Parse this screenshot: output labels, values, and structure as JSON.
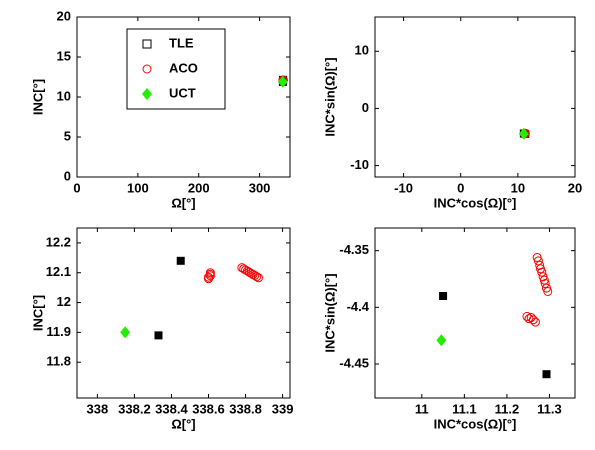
{
  "chart_data": [
    {
      "type": "scatter",
      "x_label": "Ω[°]",
      "y_label": "INC[°]",
      "xlim": [
        0,
        350
      ],
      "ylim": [
        0,
        20
      ],
      "xticks": [
        0,
        100,
        200,
        300
      ],
      "yticks": [
        0,
        5,
        10,
        15,
        20
      ],
      "legend": "upper left",
      "series": [
        {
          "name": "TLE",
          "color": "#000000",
          "marker": "square",
          "x": [
            338.45,
            338.33
          ],
          "values": [
            12.14,
            11.89
          ]
        },
        {
          "name": "ACO",
          "color": "#ff0000",
          "marker": "circle",
          "x": [
            338.61,
            338.61,
            338.61,
            338.6,
            338.6,
            338.78,
            338.79,
            338.8,
            338.81,
            338.82,
            338.83,
            338.84,
            338.85,
            338.86,
            338.87
          ],
          "values": [
            12.1,
            12.095,
            12.09,
            12.085,
            12.08,
            12.117,
            12.113,
            12.109,
            12.106,
            12.102,
            12.098,
            12.094,
            12.091,
            12.087,
            12.083
          ]
        },
        {
          "name": "UCT",
          "color": "#22ee00",
          "marker": "diamond",
          "x": [
            338.15
          ],
          "values": [
            11.9
          ]
        }
      ]
    },
    {
      "type": "scatter",
      "x_label": "INC*cos(Ω)[°]",
      "y_label": "INC*sin(Ω)[°]",
      "xlim": [
        -15,
        20
      ],
      "ylim": [
        -12,
        16
      ],
      "xticks": [
        -10,
        0,
        10,
        20
      ],
      "yticks": [
        -10,
        0,
        10
      ],
      "series": [
        {
          "name": "TLE",
          "color": "#000000",
          "marker": "square",
          "x": [
            11.293,
            11.05
          ],
          "values": [
            -4.459,
            -4.39
          ]
        },
        {
          "name": "ACO",
          "color": "#ff0000",
          "marker": "circle",
          "x": [
            11.267,
            11.262,
            11.257,
            11.252,
            11.247,
            11.296,
            11.293,
            11.29,
            11.288,
            11.285,
            11.282,
            11.279,
            11.277,
            11.274,
            11.271
          ],
          "values": [
            -4.413,
            -4.411,
            -4.409,
            -4.41,
            -4.408,
            -4.386,
            -4.383,
            -4.379,
            -4.376,
            -4.373,
            -4.369,
            -4.366,
            -4.363,
            -4.359,
            -4.356
          ]
        },
        {
          "name": "UCT",
          "color": "#22ee00",
          "marker": "diamond",
          "x": [
            11.046
          ],
          "values": [
            -4.429
          ]
        }
      ]
    },
    {
      "type": "scatter",
      "x_label": "Ω[°]",
      "y_label": "INC[°]",
      "xlim": [
        337.89,
        339.04
      ],
      "ylim": [
        11.68,
        12.25
      ],
      "xticks": [
        338,
        338.2,
        338.4,
        338.6,
        338.8,
        339
      ],
      "yticks": [
        11.8,
        11.9,
        12,
        12.1,
        12.2
      ],
      "series": [
        {
          "name": "TLE",
          "color": "#000000",
          "marker": "square",
          "x": [
            338.45,
            338.33
          ],
          "values": [
            12.14,
            11.89
          ]
        },
        {
          "name": "ACO",
          "color": "#ff0000",
          "marker": "circle",
          "x": [
            338.61,
            338.61,
            338.61,
            338.6,
            338.6,
            338.78,
            338.79,
            338.8,
            338.81,
            338.82,
            338.83,
            338.84,
            338.85,
            338.86,
            338.87
          ],
          "values": [
            12.1,
            12.095,
            12.09,
            12.085,
            12.08,
            12.117,
            12.113,
            12.109,
            12.106,
            12.102,
            12.098,
            12.094,
            12.091,
            12.087,
            12.083
          ]
        },
        {
          "name": "UCT",
          "color": "#22ee00",
          "marker": "diamond",
          "x": [
            338.15
          ],
          "values": [
            11.9
          ]
        }
      ]
    },
    {
      "type": "scatter",
      "x_label": "INC*cos(Ω)[°]",
      "y_label": "INC*sin(Ω)[°]",
      "xlim": [
        10.89,
        11.36
      ],
      "ylim": [
        -4.48,
        -4.33
      ],
      "xticks": [
        11,
        11.1,
        11.2,
        11.3
      ],
      "yticks": [
        -4.45,
        -4.4,
        -4.35
      ],
      "series": [
        {
          "name": "TLE",
          "color": "#000000",
          "marker": "square",
          "x": [
            11.293,
            11.05
          ],
          "values": [
            -4.459,
            -4.39
          ]
        },
        {
          "name": "ACO",
          "color": "#ff0000",
          "marker": "circle",
          "x": [
            11.267,
            11.262,
            11.257,
            11.252,
            11.247,
            11.296,
            11.293,
            11.29,
            11.288,
            11.285,
            11.282,
            11.279,
            11.277,
            11.274,
            11.271
          ],
          "values": [
            -4.413,
            -4.411,
            -4.409,
            -4.41,
            -4.408,
            -4.386,
            -4.383,
            -4.379,
            -4.376,
            -4.373,
            -4.369,
            -4.366,
            -4.363,
            -4.359,
            -4.356
          ]
        },
        {
          "name": "UCT",
          "color": "#22ee00",
          "marker": "diamond",
          "x": [
            11.046
          ],
          "values": [
            -4.429
          ]
        }
      ]
    }
  ]
}
